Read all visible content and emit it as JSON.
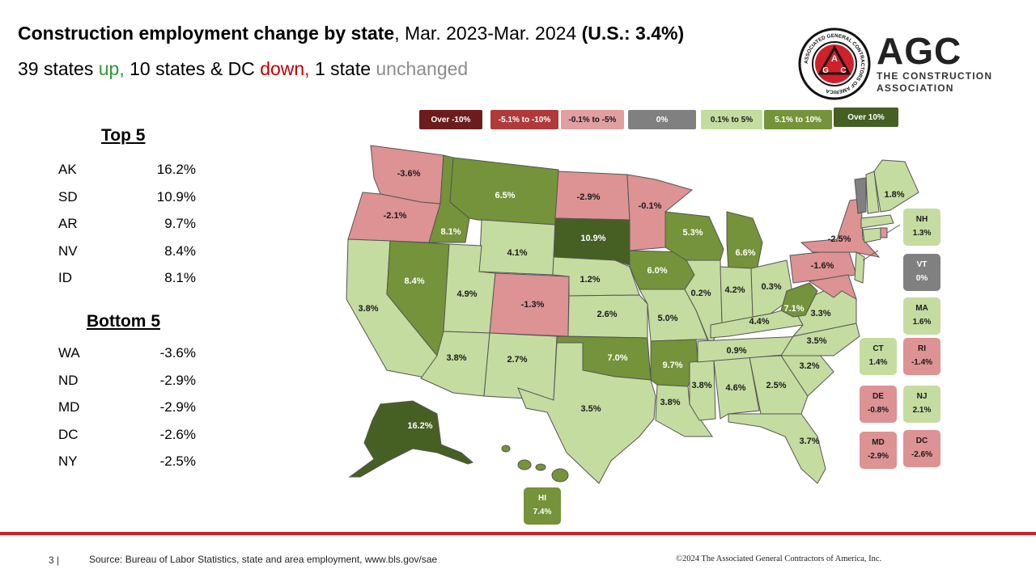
{
  "title": {
    "bold": "Construction employment change by state",
    "normal": ", Mar. 2023-Mar. 2024 ",
    "us": "(U.S.: 3.4%)"
  },
  "subtitle": {
    "up_count": "39 states ",
    "up_word": "up,",
    "down_count": " 10 states & DC ",
    "down_word": "down,",
    "unch_count": " 1 state ",
    "unch_word": "unchanged"
  },
  "top5": {
    "heading": "Top 5",
    "rows": [
      {
        "state": "AK",
        "value": "16.2%"
      },
      {
        "state": "SD",
        "value": "10.9%"
      },
      {
        "state": "AR",
        "value": "9.7%"
      },
      {
        "state": "NV",
        "value": "8.4%"
      },
      {
        "state": "ID",
        "value": "8.1%"
      }
    ]
  },
  "bottom5": {
    "heading": "Bottom 5",
    "rows": [
      {
        "state": "WA",
        "value": "-3.6%"
      },
      {
        "state": "ND",
        "value": "-2.9%"
      },
      {
        "state": "MD",
        "value": "-2.9%"
      },
      {
        "state": "DC",
        "value": "-2.6%"
      },
      {
        "state": "NY",
        "value": "-2.5%"
      }
    ]
  },
  "legend": [
    {
      "label": "Over -10%",
      "color": "#6b1d1d",
      "text_color": "#ffffff"
    },
    {
      "label": "-5.1% to -10%",
      "color": "#b03a3a",
      "text_color": "#ffffff"
    },
    {
      "label": "-0.1% to -5%",
      "color": "#e0a0a0",
      "text_color": "#1a1a1a"
    },
    {
      "label": "0%",
      "color": "#808080",
      "text_color": "#ffffff"
    },
    {
      "label": "0.1% to 5%",
      "color": "#c5dca0",
      "text_color": "#1a1a1a"
    },
    {
      "label": "5.1% to 10%",
      "color": "#74933a",
      "text_color": "#ffffff"
    },
    {
      "label": "Over 10%",
      "color": "#465f23",
      "text_color": "#ffffff"
    }
  ],
  "colors": {
    "light_green": "#c5dca0",
    "mid_green": "#74933a",
    "dark_green": "#465f23",
    "pink": "#dd9294",
    "gray": "#808080",
    "brand_red": "#d0202a"
  },
  "map_labels": {
    "WA": "-3.6%",
    "OR": "-2.1%",
    "ID": "8.1%",
    "MT": "6.5%",
    "ND": "-2.9%",
    "MN": "-0.1%",
    "WI": "5.3%",
    "MI": "6.6%",
    "NV": "8.4%",
    "UT": "4.9%",
    "WY": "4.1%",
    "SD": "10.9%",
    "IA": "6.0%",
    "CA": "3.8%",
    "AZ": "3.8%",
    "CO": "-1.3%",
    "NE": "1.2%",
    "NM": "2.7%",
    "KS": "2.6%",
    "MO": "5.0%",
    "IL": "0.2%",
    "IN": "4.2%",
    "OH": "0.3%",
    "WV": "7.1%",
    "VA": "3.3%",
    "KY": "4.4%",
    "OK": "7.0%",
    "AR": "9.7%",
    "TN": "0.9%",
    "NC": "3.5%",
    "SC": "3.2%",
    "TX": "3.5%",
    "LA": "3.8%",
    "MS": "3.8%",
    "AL": "4.6%",
    "GA": "2.5%",
    "FL": "3.7%",
    "AK": "16.2%",
    "ME": "1.8%",
    "NY": "-2.5%",
    "PA": "-1.6%"
  },
  "insets": {
    "NH": {
      "abbr": "NH",
      "value": "1.3%"
    },
    "VT": {
      "abbr": "VT",
      "value": "0%"
    },
    "MA": {
      "abbr": "MA",
      "value": "1.6%"
    },
    "CT": {
      "abbr": "CT",
      "value": "1.4%"
    },
    "RI": {
      "abbr": "RI",
      "value": "-1.4%"
    },
    "DE": {
      "abbr": "DE",
      "value": "-0.8%"
    },
    "NJ": {
      "abbr": "NJ",
      "value": "2.1%"
    },
    "MD": {
      "abbr": "MD",
      "value": "-2.9%"
    },
    "DC": {
      "abbr": "DC",
      "value": "-2.6%"
    },
    "HI": {
      "abbr": "HI",
      "value": "7.4%"
    }
  },
  "logo": {
    "wordmark": "AGC",
    "tagline_1": "THE CONSTRUCTION",
    "tagline_2": "ASSOCIATION",
    "seal_text": "ASSOCIATED GENERAL CONTRACTORS OF AMERICA",
    "seal_letters": "AGC"
  },
  "footer": {
    "page": "3 |",
    "source": "Source: Bureau of Labor Statistics, state and area employment, www.bls.gov/sae",
    "copyright": "©2024 The Associated General Contractors of America, Inc."
  }
}
